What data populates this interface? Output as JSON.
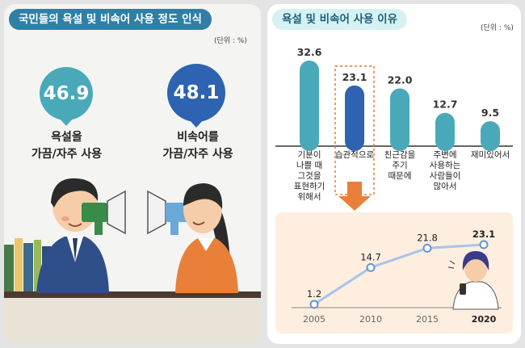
{
  "left": {
    "title": "국민들의 욕설 및 비속어 사용 정도 인식",
    "unit": "(단위 : %)",
    "stats": [
      {
        "value": "46.9",
        "label": "욕설을\n가끔/자주 사용",
        "color": "#4aa9b8"
      },
      {
        "value": "48.1",
        "label": "비속어를\n가끔/자주 사용",
        "color": "#2d63b0"
      }
    ]
  },
  "right": {
    "title": "욕설 및 비속어 사용 이유",
    "unit": "(단위 : %)"
  },
  "colors": {
    "bar": "#4aa9b8",
    "bar_highlight": "#2d63b0",
    "arrow": "#e8803a",
    "line": "#a9c3e6",
    "trend_bg": "#fdeee0"
  },
  "chart_data": [
    {
      "type": "bar",
      "categories": [
        "기분이\n나쁠 때\n그것을\n표현하기\n위해서",
        "습관적으로",
        "친근감을\n주기\n때문에",
        "주변에\n사용하는\n사람들이\n많아서",
        "재미있어서"
      ],
      "values": [
        32.6,
        23.1,
        22.0,
        12.7,
        9.5
      ],
      "labels": [
        "32.6",
        "23.1",
        "22.0",
        "12.7",
        "9.5"
      ],
      "highlight_index": 1,
      "title": "욕설 및 비속어 사용 이유",
      "ylim": [
        0,
        35
      ]
    },
    {
      "type": "line",
      "x": [
        "2005",
        "2010",
        "2015",
        "2020"
      ],
      "values": [
        1.2,
        14.7,
        21.8,
        23.1
      ],
      "labels": [
        "1.2",
        "14.7",
        "21.8",
        "23.1"
      ],
      "ylim": [
        0,
        25
      ]
    }
  ]
}
